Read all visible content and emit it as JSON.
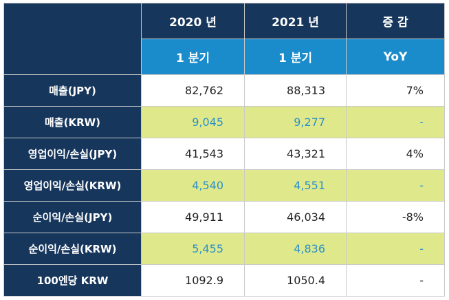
{
  "table": {
    "header": [
      [
        "2020 년",
        "2021 년",
        "증 감"
      ],
      [
        "1 분기",
        "1 분기",
        "YoY"
      ]
    ],
    "rows": [
      {
        "label": "매출(JPY)",
        "cells": [
          "82,762",
          "88,313",
          "7%"
        ]
      },
      {
        "label": "매출(KRW)",
        "cells": [
          "9,045",
          "9,277",
          "-"
        ]
      },
      {
        "label": "영업이익/손실(JPY)",
        "cells": [
          "41,543",
          "43,321",
          "4%"
        ]
      },
      {
        "label": "영업이익/손실(KRW)",
        "cells": [
          "4,540",
          "4,551",
          "-"
        ]
      },
      {
        "label": "순이익/손실(JPY)",
        "cells": [
          "49,911",
          "46,034",
          "-8%"
        ]
      },
      {
        "label": "순이익/손실(KRW)",
        "cells": [
          "5,455",
          "4,836",
          "-"
        ]
      },
      {
        "label": "100엔당 KRW",
        "cells": [
          "1092.9",
          "1050.4",
          "-"
        ]
      }
    ]
  }
}
